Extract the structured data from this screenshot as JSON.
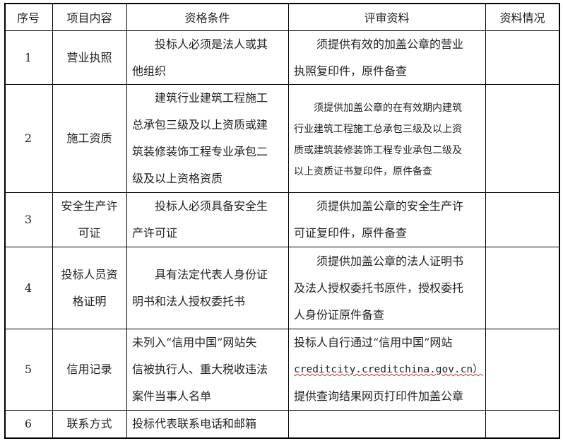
{
  "headers": [
    "序号",
    "项目内容",
    "资格条件",
    "评审资料",
    "资料情况"
  ],
  "rows": [
    {
      "no": "1",
      "item": [
        "营业执照"
      ],
      "criteria": [
        "投标人必须是法人或其",
        "他组织"
      ],
      "materials": [
        "须提供有效的加盖公章的营业",
        "执照复印件，原件备查"
      ],
      "status": ""
    },
    {
      "no": "2",
      "item": [
        "施工资质"
      ],
      "criteria": [
        "建筑行业建筑工程施工",
        "总承包三级及以上资质或建",
        "筑装修装饰工程专业承包二",
        "级及以上资格资质"
      ],
      "materials": [
        "须提供加盖公章的在有效期内建筑",
        "行业建筑工程施工总承包三级及以上资",
        "质或建筑装修装饰工程专业承包二级及",
        "以上资质证书复印件，原件备查"
      ],
      "status": ""
    },
    {
      "no": "3",
      "item": [
        "安全生产许",
        "可证"
      ],
      "criteria": [
        "投标人必须具备安全生",
        "产许可证"
      ],
      "materials": [
        "须提供加盖公章的安全生产许",
        "可证复印件，原件备查"
      ],
      "status": ""
    },
    {
      "no": "4",
      "item": [
        "投标人员资",
        "格证明"
      ],
      "criteria": [
        "具有法定代表人身份证",
        "明书和法人授权委托书"
      ],
      "materials": [
        "须提供加盖公章的法人证明书",
        "及法人授权委托书原件，授权委托",
        "人身份证原件备查"
      ],
      "status": ""
    },
    {
      "no": "5",
      "item": [
        "信用记录"
      ],
      "criteria": [
        "未列入“信用中国”网站失",
        "信被执行人、重大税收违法",
        "案件当事人名单"
      ],
      "materials": [
        "投标人自行通过“信用中国”网站",
        "creditcity.creditchina.gov.cn）",
        "提供查询结果网页打印件加盖公章"
      ],
      "status": ""
    },
    {
      "no": "6",
      "item": [
        "联系方式"
      ],
      "criteria": [
        "投标代表联系电话和邮箱"
      ],
      "materials": [],
      "status": ""
    }
  ]
}
